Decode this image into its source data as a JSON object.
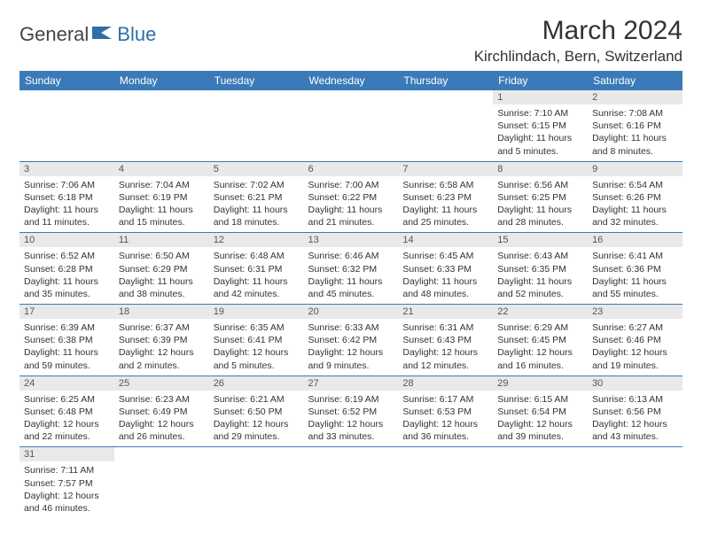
{
  "brand": {
    "text_dark": "General",
    "text_blue": "Blue"
  },
  "title": "March 2024",
  "location": "Kirchlindach, Bern, Switzerland",
  "colors": {
    "header_bg": "#3a7ab8",
    "header_fg": "#ffffff",
    "daynum_bg": "#e9e9e9",
    "rule": "#3a7ab8",
    "logo_blue": "#2f6fa8",
    "text": "#333333"
  },
  "weekdays": [
    "Sunday",
    "Monday",
    "Tuesday",
    "Wednesday",
    "Thursday",
    "Friday",
    "Saturday"
  ],
  "weeks": [
    [
      null,
      null,
      null,
      null,
      null,
      {
        "n": "1",
        "sr": "7:10 AM",
        "ss": "6:15 PM",
        "dl": "11 hours and 5 minutes."
      },
      {
        "n": "2",
        "sr": "7:08 AM",
        "ss": "6:16 PM",
        "dl": "11 hours and 8 minutes."
      }
    ],
    [
      {
        "n": "3",
        "sr": "7:06 AM",
        "ss": "6:18 PM",
        "dl": "11 hours and 11 minutes."
      },
      {
        "n": "4",
        "sr": "7:04 AM",
        "ss": "6:19 PM",
        "dl": "11 hours and 15 minutes."
      },
      {
        "n": "5",
        "sr": "7:02 AM",
        "ss": "6:21 PM",
        "dl": "11 hours and 18 minutes."
      },
      {
        "n": "6",
        "sr": "7:00 AM",
        "ss": "6:22 PM",
        "dl": "11 hours and 21 minutes."
      },
      {
        "n": "7",
        "sr": "6:58 AM",
        "ss": "6:23 PM",
        "dl": "11 hours and 25 minutes."
      },
      {
        "n": "8",
        "sr": "6:56 AM",
        "ss": "6:25 PM",
        "dl": "11 hours and 28 minutes."
      },
      {
        "n": "9",
        "sr": "6:54 AM",
        "ss": "6:26 PM",
        "dl": "11 hours and 32 minutes."
      }
    ],
    [
      {
        "n": "10",
        "sr": "6:52 AM",
        "ss": "6:28 PM",
        "dl": "11 hours and 35 minutes."
      },
      {
        "n": "11",
        "sr": "6:50 AM",
        "ss": "6:29 PM",
        "dl": "11 hours and 38 minutes."
      },
      {
        "n": "12",
        "sr": "6:48 AM",
        "ss": "6:31 PM",
        "dl": "11 hours and 42 minutes."
      },
      {
        "n": "13",
        "sr": "6:46 AM",
        "ss": "6:32 PM",
        "dl": "11 hours and 45 minutes."
      },
      {
        "n": "14",
        "sr": "6:45 AM",
        "ss": "6:33 PM",
        "dl": "11 hours and 48 minutes."
      },
      {
        "n": "15",
        "sr": "6:43 AM",
        "ss": "6:35 PM",
        "dl": "11 hours and 52 minutes."
      },
      {
        "n": "16",
        "sr": "6:41 AM",
        "ss": "6:36 PM",
        "dl": "11 hours and 55 minutes."
      }
    ],
    [
      {
        "n": "17",
        "sr": "6:39 AM",
        "ss": "6:38 PM",
        "dl": "11 hours and 59 minutes."
      },
      {
        "n": "18",
        "sr": "6:37 AM",
        "ss": "6:39 PM",
        "dl": "12 hours and 2 minutes."
      },
      {
        "n": "19",
        "sr": "6:35 AM",
        "ss": "6:41 PM",
        "dl": "12 hours and 5 minutes."
      },
      {
        "n": "20",
        "sr": "6:33 AM",
        "ss": "6:42 PM",
        "dl": "12 hours and 9 minutes."
      },
      {
        "n": "21",
        "sr": "6:31 AM",
        "ss": "6:43 PM",
        "dl": "12 hours and 12 minutes."
      },
      {
        "n": "22",
        "sr": "6:29 AM",
        "ss": "6:45 PM",
        "dl": "12 hours and 16 minutes."
      },
      {
        "n": "23",
        "sr": "6:27 AM",
        "ss": "6:46 PM",
        "dl": "12 hours and 19 minutes."
      }
    ],
    [
      {
        "n": "24",
        "sr": "6:25 AM",
        "ss": "6:48 PM",
        "dl": "12 hours and 22 minutes."
      },
      {
        "n": "25",
        "sr": "6:23 AM",
        "ss": "6:49 PM",
        "dl": "12 hours and 26 minutes."
      },
      {
        "n": "26",
        "sr": "6:21 AM",
        "ss": "6:50 PM",
        "dl": "12 hours and 29 minutes."
      },
      {
        "n": "27",
        "sr": "6:19 AM",
        "ss": "6:52 PM",
        "dl": "12 hours and 33 minutes."
      },
      {
        "n": "28",
        "sr": "6:17 AM",
        "ss": "6:53 PM",
        "dl": "12 hours and 36 minutes."
      },
      {
        "n": "29",
        "sr": "6:15 AM",
        "ss": "6:54 PM",
        "dl": "12 hours and 39 minutes."
      },
      {
        "n": "30",
        "sr": "6:13 AM",
        "ss": "6:56 PM",
        "dl": "12 hours and 43 minutes."
      }
    ],
    [
      {
        "n": "31",
        "sr": "7:11 AM",
        "ss": "7:57 PM",
        "dl": "12 hours and 46 minutes."
      },
      null,
      null,
      null,
      null,
      null,
      null
    ]
  ],
  "labels": {
    "sunrise": "Sunrise:",
    "sunset": "Sunset:",
    "daylight": "Daylight:"
  }
}
